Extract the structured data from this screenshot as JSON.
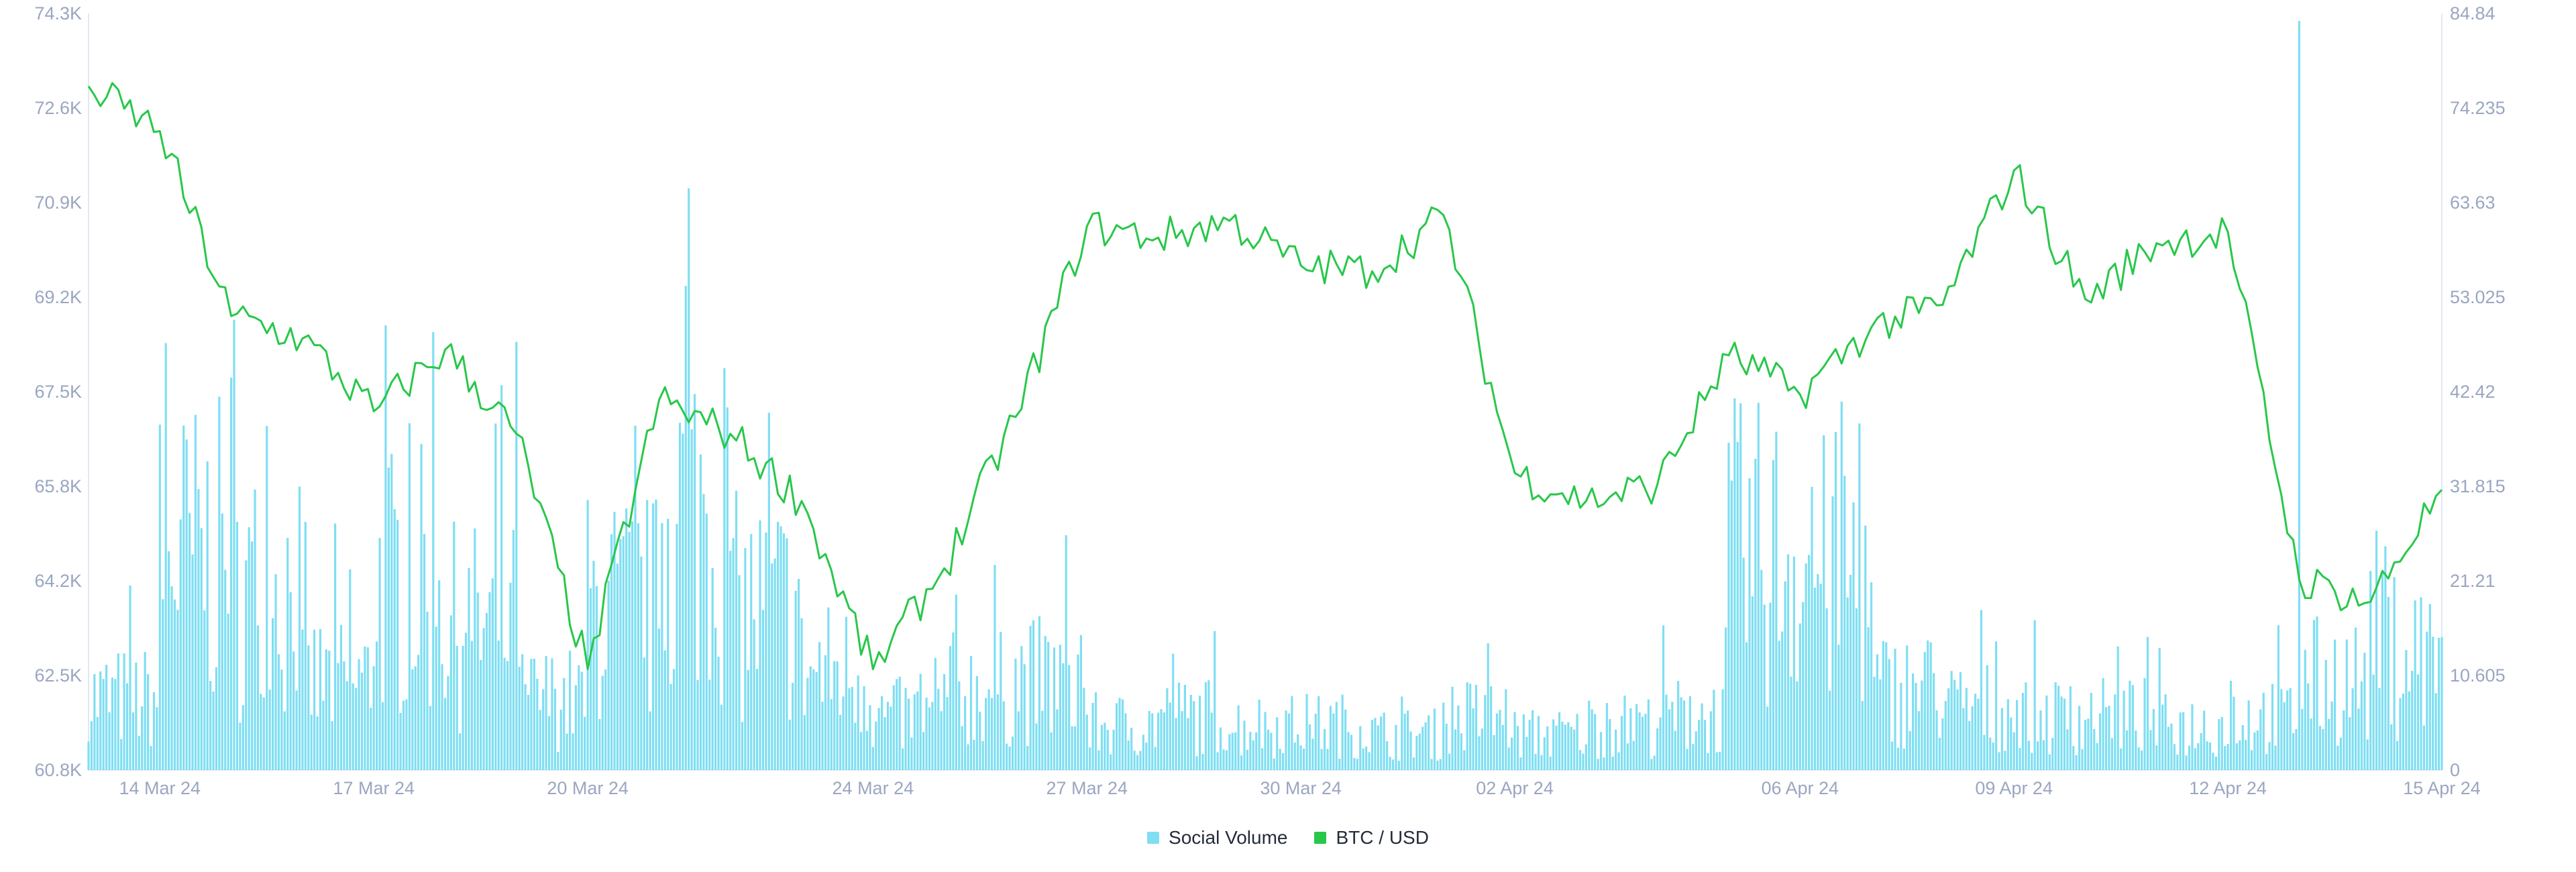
{
  "colors": {
    "social_volume": "#7fdef2",
    "btc_usd": "#28c74a",
    "axis_text": "#9aa6c1",
    "axis_line": "#e3e8f0",
    "legend_text": "#242c3b"
  },
  "legend": [
    {
      "label": "Social Volume",
      "color": "#7fdef2"
    },
    {
      "label": "BTC / USD",
      "color": "#28c74a"
    }
  ],
  "chart_data": {
    "type": "bar+line",
    "title": "",
    "xlabel": "",
    "ylabel_left": "",
    "ylabel_right": "",
    "x_ticks": [
      "14 Mar 24",
      "17 Mar 24",
      "20 Mar 24",
      "24 Mar 24",
      "27 Mar 24",
      "30 Mar 24",
      "02 Apr 24",
      "06 Apr 24",
      "09 Apr 24",
      "12 Apr 24",
      "15 Apr 24"
    ],
    "y_left_ticks": [
      "74.3K",
      "72.6K",
      "70.9K",
      "69.2K",
      "67.5K",
      "65.8K",
      "64.2K",
      "62.5K",
      "60.8K"
    ],
    "y_right_ticks": [
      "84.84",
      "74.235",
      "63.63",
      "53.025",
      "42.42",
      "31.815",
      "21.21",
      "10.605",
      "0"
    ],
    "x_range": [
      "2024-03-13",
      "2024-04-15"
    ],
    "y_left_range": [
      60800,
      74300
    ],
    "y_right_range": [
      0,
      84.84
    ],
    "grid": false,
    "legend_position": "bottom-center",
    "series": [
      {
        "name": "Social Volume",
        "type": "bar",
        "axis": "right",
        "date_range": [
          "2024-03-13",
          "2024-04-15"
        ],
        "daily_avg": [
          8,
          24,
          20,
          10,
          21,
          16,
          8,
          18,
          29,
          18,
          11,
          6,
          9,
          10,
          5,
          6,
          5,
          5,
          4,
          6,
          4,
          5,
          6,
          24,
          22,
          9,
          7,
          6,
          6,
          5,
          6,
          10,
          13,
          11
        ],
        "peaks": [
          {
            "x": "2024-03-15",
            "y": 44
          },
          {
            "x": "2024-03-19",
            "y": 48
          },
          {
            "x": "2024-04-13",
            "y": 84
          }
        ]
      },
      {
        "name": "BTC / USD",
        "type": "line",
        "axis": "left",
        "x": [
          "2024-03-13",
          "2024-03-14",
          "2024-03-15",
          "2024-03-16",
          "2024-03-17",
          "2024-03-18",
          "2024-03-19",
          "2024-03-20",
          "2024-03-21",
          "2024-03-22",
          "2024-03-23",
          "2024-03-24",
          "2024-03-25",
          "2024-03-26",
          "2024-03-27",
          "2024-03-28",
          "2024-03-29",
          "2024-03-30",
          "2024-03-31",
          "2024-04-01",
          "2024-04-02",
          "2024-04-03",
          "2024-04-04",
          "2024-04-05",
          "2024-04-06",
          "2024-04-07",
          "2024-04-08",
          "2024-04-09",
          "2024-04-10",
          "2024-04-11",
          "2024-04-12",
          "2024-04-13",
          "2024-04-14",
          "2024-04-15"
        ],
        "values": [
          73000,
          72200,
          68900,
          68500,
          67200,
          68300,
          66800,
          62600,
          67400,
          66800,
          65600,
          62600,
          64400,
          67100,
          70500,
          70300,
          70600,
          69800,
          69700,
          70700,
          66100,
          65600,
          65900,
          68200,
          67500,
          68700,
          69100,
          71500,
          69200,
          70200,
          70400,
          64200,
          63800,
          65800
        ]
      }
    ]
  }
}
